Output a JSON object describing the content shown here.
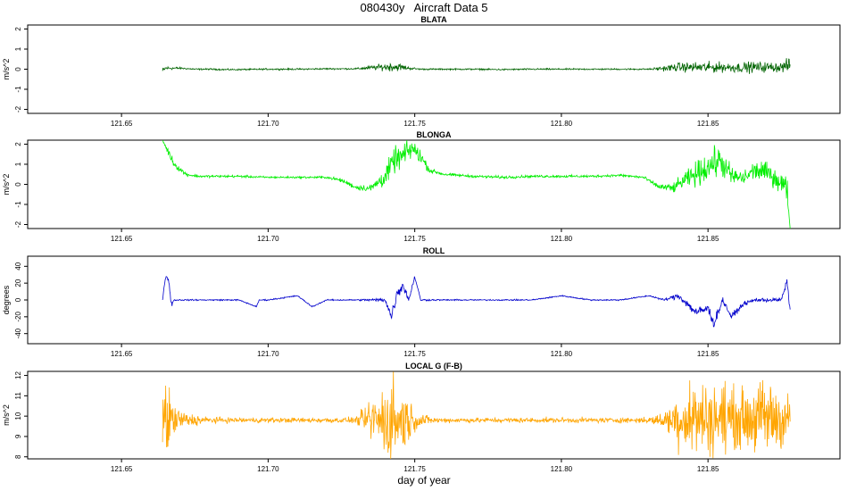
{
  "page": {
    "title": "080430y   Aircraft Data 5",
    "xlabel": "day of year"
  },
  "chart_data": [
    {
      "type": "line",
      "title": "BLATA",
      "xlabel": "",
      "ylabel": "m/s^2",
      "xlim": [
        121.618,
        121.895
      ],
      "ylim": [
        -2.2,
        2.2
      ],
      "xticks": [
        "121.65",
        "121.70",
        "121.75",
        "121.80",
        "121.85"
      ],
      "yticks": [
        "-2",
        "-1",
        "0",
        "1",
        "2"
      ],
      "color": "#006400",
      "series": [
        {
          "x": [
            121.664,
            121.665,
            121.67,
            121.675,
            121.68,
            121.685,
            121.69,
            121.7,
            121.71,
            121.72,
            121.73,
            121.738,
            121.742,
            121.745,
            121.748,
            121.752,
            121.76,
            121.77,
            121.78,
            121.79,
            121.8,
            121.81,
            121.82,
            121.83,
            121.836,
            121.84,
            121.845,
            121.85,
            121.855,
            121.86,
            121.865,
            121.87,
            121.875,
            121.878
          ],
          "y": [
            -0.1,
            0.05,
            0.05,
            0.0,
            0.0,
            -0.02,
            -0.02,
            0.0,
            0.0,
            0.02,
            0.02,
            0.1,
            0.12,
            0.1,
            0.05,
            0.0,
            0.0,
            0.0,
            -0.02,
            0.0,
            0.0,
            0.0,
            0.0,
            0.0,
            0.05,
            0.1,
            0.1,
            0.08,
            0.1,
            0.08,
            0.1,
            0.1,
            0.1,
            0.2
          ],
          "noise": [
            0.15,
            0.08,
            0.04,
            0.03,
            0.03,
            0.03,
            0.03,
            0.03,
            0.03,
            0.03,
            0.03,
            0.12,
            0.18,
            0.15,
            0.06,
            0.03,
            0.03,
            0.03,
            0.03,
            0.03,
            0.03,
            0.03,
            0.03,
            0.03,
            0.12,
            0.18,
            0.2,
            0.22,
            0.2,
            0.2,
            0.22,
            0.2,
            0.2,
            0.3
          ]
        }
      ]
    },
    {
      "type": "line",
      "title": "BLONGA",
      "xlabel": "",
      "ylabel": "m/s^2",
      "xlim": [
        121.618,
        121.895
      ],
      "ylim": [
        -2.2,
        2.2
      ],
      "xticks": [
        "121.65",
        "121.70",
        "121.75",
        "121.80",
        "121.85"
      ],
      "yticks": [
        "-2",
        "-1",
        "0",
        "1",
        "2"
      ],
      "color": "#00ee00",
      "series": [
        {
          "x": [
            121.664,
            121.666,
            121.668,
            121.672,
            121.676,
            121.68,
            121.69,
            121.7,
            121.71,
            121.72,
            121.725,
            121.73,
            121.735,
            121.74,
            121.743,
            121.746,
            121.749,
            121.752,
            121.755,
            121.76,
            121.77,
            121.78,
            121.79,
            121.8,
            121.81,
            121.82,
            121.828,
            121.833,
            121.838,
            121.842,
            121.846,
            121.85,
            121.854,
            121.858,
            121.862,
            121.866,
            121.87,
            121.874,
            121.877,
            121.878
          ],
          "y": [
            2.2,
            1.6,
            1.0,
            0.5,
            0.4,
            0.4,
            0.4,
            0.35,
            0.35,
            0.35,
            0.2,
            -0.15,
            -0.2,
            0.4,
            1.2,
            1.4,
            1.8,
            1.4,
            0.7,
            0.5,
            0.4,
            0.35,
            0.4,
            0.4,
            0.4,
            0.45,
            0.35,
            -0.1,
            -0.2,
            0.2,
            0.5,
            0.9,
            1.2,
            0.4,
            0.3,
            0.7,
            0.6,
            0.2,
            -0.2,
            -2.2
          ],
          "noise": [
            0.05,
            0.15,
            0.15,
            0.08,
            0.05,
            0.05,
            0.05,
            0.04,
            0.04,
            0.05,
            0.08,
            0.1,
            0.15,
            0.4,
            0.5,
            0.5,
            0.4,
            0.3,
            0.1,
            0.06,
            0.05,
            0.06,
            0.05,
            0.05,
            0.05,
            0.05,
            0.06,
            0.1,
            0.2,
            0.3,
            0.5,
            0.6,
            0.6,
            0.4,
            0.3,
            0.4,
            0.4,
            0.4,
            0.5,
            0.0
          ]
        }
      ]
    },
    {
      "type": "line",
      "title": "ROLL",
      "xlabel": "",
      "ylabel": "degrees",
      "xlim": [
        121.618,
        121.895
      ],
      "ylim": [
        -52,
        52
      ],
      "xticks": [
        "121.65",
        "121.70",
        "121.75",
        "121.80",
        "121.85"
      ],
      "yticks": [
        "-40",
        "-20",
        "0",
        "20",
        "40"
      ],
      "color": "#0000cc",
      "series": [
        {
          "x": [
            121.664,
            121.665,
            121.666,
            121.667,
            121.668,
            121.672,
            121.68,
            121.69,
            121.696,
            121.697,
            121.7,
            121.71,
            121.715,
            121.72,
            121.73,
            121.74,
            121.742,
            121.744,
            121.746,
            121.748,
            121.75,
            121.752,
            121.76,
            121.77,
            121.78,
            121.79,
            121.8,
            121.81,
            121.82,
            121.83,
            121.835,
            121.84,
            121.843,
            121.846,
            121.85,
            121.852,
            121.855,
            121.858,
            121.862,
            121.866,
            121.87,
            121.875,
            121.877,
            121.878
          ],
          "y": [
            0,
            28,
            25,
            -5,
            0,
            0,
            0,
            0,
            -8,
            0,
            0,
            5,
            -8,
            0,
            0,
            0,
            -20,
            8,
            18,
            0,
            28,
            0,
            0,
            0,
            0,
            0,
            5,
            0,
            0,
            5,
            0,
            5,
            -5,
            -15,
            -10,
            -28,
            0,
            -20,
            -5,
            0,
            0,
            0,
            22,
            -12
          ],
          "noise": [
            0.5,
            2,
            2,
            3,
            1,
            0.6,
            0.6,
            0.6,
            0.5,
            0.6,
            0.6,
            0.6,
            0.6,
            0.6,
            0.6,
            2,
            6,
            6,
            5,
            2,
            2,
            1,
            0.6,
            0.6,
            0.6,
            0.6,
            0.6,
            0.6,
            0.6,
            0.6,
            1,
            3,
            4,
            5,
            5,
            5,
            3,
            3,
            2,
            2,
            2,
            2,
            3,
            3
          ]
        }
      ]
    },
    {
      "type": "line",
      "title": "LOCAL G (F-B)",
      "xlabel": "",
      "ylabel": "m/s^2",
      "xlim": [
        121.618,
        121.895
      ],
      "ylim": [
        7.9,
        12.2
      ],
      "xticks": [
        "121.65",
        "121.70",
        "121.75",
        "121.80",
        "121.85"
      ],
      "yticks": [
        "8",
        "9",
        "10",
        "11",
        "12"
      ],
      "color": "#ffa500",
      "series": [
        {
          "x": [
            121.664,
            121.666,
            121.668,
            121.672,
            121.68,
            121.69,
            121.7,
            121.71,
            121.72,
            121.73,
            121.738,
            121.742,
            121.746,
            121.75,
            121.755,
            121.76,
            121.77,
            121.78,
            121.79,
            121.8,
            121.81,
            121.82,
            121.83,
            121.836,
            121.84,
            121.845,
            121.85,
            121.855,
            121.86,
            121.865,
            121.87,
            121.875,
            121.878
          ],
          "y": [
            9.8,
            9.8,
            9.8,
            9.8,
            9.8,
            9.8,
            9.8,
            9.8,
            9.8,
            9.8,
            9.8,
            9.8,
            9.8,
            9.8,
            9.8,
            9.8,
            9.8,
            9.8,
            9.8,
            9.8,
            9.8,
            9.8,
            9.8,
            9.8,
            9.9,
            9.9,
            9.9,
            9.9,
            9.9,
            9.9,
            9.9,
            9.9,
            9.9
          ],
          "noise": [
            1.8,
            1.3,
            0.6,
            0.3,
            0.12,
            0.1,
            0.1,
            0.1,
            0.1,
            0.12,
            1.2,
            1.9,
            1.3,
            0.4,
            0.15,
            0.1,
            0.1,
            0.1,
            0.1,
            0.1,
            0.1,
            0.1,
            0.12,
            0.4,
            1.2,
            1.6,
            1.4,
            1.5,
            1.1,
            1.3,
            1.6,
            1.3,
            0.8
          ]
        }
      ]
    }
  ]
}
